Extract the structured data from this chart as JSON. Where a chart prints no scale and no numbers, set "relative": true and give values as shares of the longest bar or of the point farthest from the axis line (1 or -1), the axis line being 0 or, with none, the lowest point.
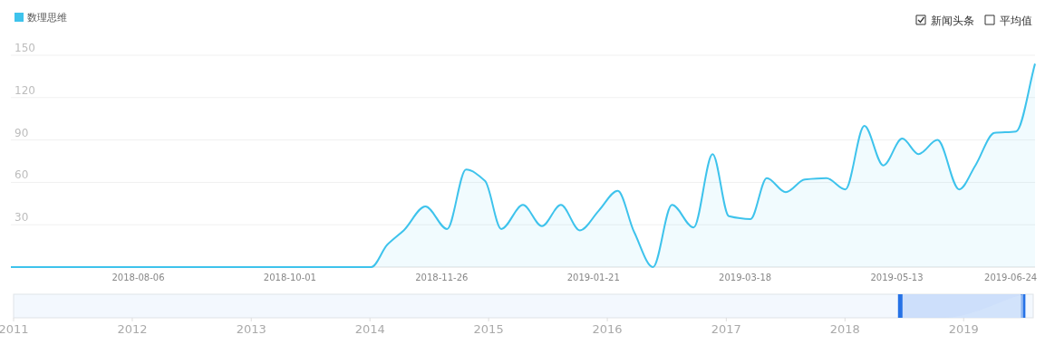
{
  "chart_data": [
    {
      "type": "area",
      "series": [
        {
          "name": "数理思维",
          "color": "#3ec3ec",
          "x": [
            "2018-06-20",
            "2018-10-31",
            "2018-11-06",
            "2018-11-12",
            "2018-11-20",
            "2018-11-28",
            "2018-12-05",
            "2018-12-12",
            "2018-12-18",
            "2018-12-26",
            "2019-01-02",
            "2019-01-09",
            "2019-01-16",
            "2019-01-23",
            "2019-01-30",
            "2019-02-05",
            "2019-02-12",
            "2019-02-19",
            "2019-02-27",
            "2019-03-06",
            "2019-03-12",
            "2019-03-20",
            "2019-03-26",
            "2019-04-02",
            "2019-04-09",
            "2019-04-17",
            "2019-04-24",
            "2019-05-01",
            "2019-05-08",
            "2019-05-15",
            "2019-05-21",
            "2019-05-28",
            "2019-06-05",
            "2019-06-11",
            "2019-06-18",
            "2019-06-26",
            "2019-07-03"
          ],
          "values": [
            0,
            0,
            16,
            26,
            43,
            27,
            69,
            61,
            27,
            44,
            29,
            44,
            26,
            40,
            54,
            25,
            0,
            44,
            28,
            80,
            36,
            34,
            63,
            53,
            62,
            63,
            55,
            100,
            72,
            91,
            80,
            90,
            55,
            72,
            95,
            96,
            144
          ]
        }
      ],
      "xlim": [
        "2018-06-20",
        "2019-07-03"
      ],
      "xticks": [
        "2018-08-06",
        "2018-10-01",
        "2018-11-26",
        "2019-01-21",
        "2019-03-18",
        "2019-05-13",
        "2019-06-24"
      ],
      "ylim": [
        0,
        150
      ],
      "yticks": [
        {
          "value": 0,
          "label": null
        },
        30,
        60,
        90,
        120,
        150
      ],
      "grid": "y",
      "legend": "top left",
      "annotations": [
        "新闻头条",
        "平均值"
      ]
    },
    {
      "type": "area",
      "relative": true,
      "series": [
        {
          "color": "#d6e6fb",
          "x": [
            "2011-01-01",
            "2018-10-31",
            "2019-07-03"
          ],
          "values": [
            0,
            0,
            1
          ]
        }
      ],
      "xlim": [
        "2011-01-01",
        "2019-08-03"
      ],
      "xticks": [
        "2011",
        "2012",
        "2013",
        "2014",
        "2015",
        "2016",
        "2017",
        "2018",
        "2019"
      ],
      "bands": [
        {
          "axis": "x",
          "from": "2018-06-20",
          "to": "2019-07-03",
          "color": "#c3d8fa"
        }
      ]
    }
  ]
}
